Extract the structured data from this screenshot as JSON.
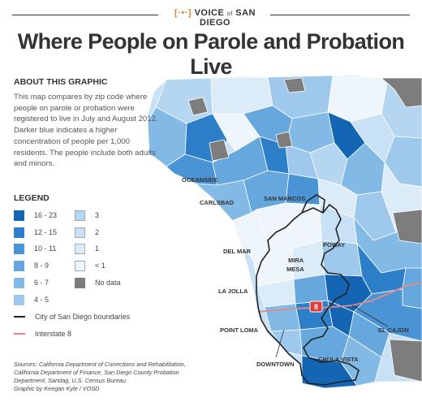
{
  "brand": {
    "name": "VOICE",
    "of": "of",
    "place": "SAN DIEGO"
  },
  "title": "Where People on Parole and Probation Live",
  "about": {
    "heading": "ABOUT THIS GRAPHIC",
    "text": "This map compares by zip code where people on parole or probation were registered to live in July and August 2012. Darker blue indicates a higher concentration of people per 1,000 residents. The people include both adults and minors."
  },
  "legend": {
    "heading": "LEGEND",
    "items": [
      {
        "label": "16 - 23",
        "color": "#1565b5"
      },
      {
        "label": "12 - 15",
        "color": "#2d7fc9"
      },
      {
        "label": "10 - 11",
        "color": "#4a94d6"
      },
      {
        "label": "8 - 9",
        "color": "#66a8de"
      },
      {
        "label": "6 - 7",
        "color": "#82b9e5"
      },
      {
        "label": "4 - 5",
        "color": "#9ec9ec"
      },
      {
        "label": "3",
        "color": "#b5d6f1"
      },
      {
        "label": "2",
        "color": "#c9e1f5"
      },
      {
        "label": "1",
        "color": "#dcebf8"
      },
      {
        "label": "< 1",
        "color": "#eef5fb"
      },
      {
        "label": "No data",
        "color": "#7d7d7d"
      }
    ],
    "city_boundary_label": "City of San Diego boundaries",
    "interstate_label": "Interstate 8",
    "interstate_color": "#e28a8a"
  },
  "places": {
    "oceanside": "OCEANSIDE",
    "carlsbad": "CARLSBAD",
    "san_marcos": "SAN MARCOS",
    "poway": "POWAY",
    "del_mar": "DEL MAR",
    "mira_mesa_1": "MIRA",
    "mira_mesa_2": "MESA",
    "la_jolla": "LA JOLLA",
    "point_loma": "POINT LOMA",
    "el_cajon": "EL CAJON",
    "downtown": "DOWNTOWN",
    "chula_vista": "CHULA VISTA",
    "i8_shield": "8"
  },
  "sources": {
    "line1": "Sources: California Department of Corrections and Rehabilitation,",
    "line2": "California Department of Finance, San Diego County Probation",
    "line3": "Department, Sandag, U.S. Census Bureau",
    "line4": "Graphic by Keegan Kyle / VOSD"
  }
}
